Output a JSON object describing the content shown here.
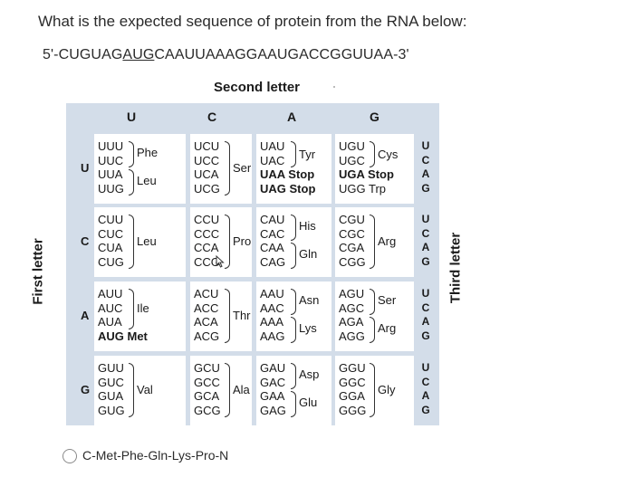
{
  "question": "What is the expected sequence of protein from the RNA below:",
  "sequence": {
    "prefix": "5'-CUGUAG",
    "underlined": "AUG",
    "suffix": "CAAUUAAAGGAAUGACCGGUUAA-3'"
  },
  "labels": {
    "second_letter": "Second letter",
    "first_letter": "First letter",
    "third_letter": "Third letter"
  },
  "col_headers": [
    "U",
    "C",
    "A",
    "G"
  ],
  "row_headers": [
    "U",
    "C",
    "A",
    "G"
  ],
  "third_letters": [
    "U",
    "C",
    "A",
    "G"
  ],
  "cells": {
    "UU": {
      "codons": [
        "UUU",
        "UUC",
        "UUA",
        "UUG"
      ],
      "aa": [
        "Phe",
        "Leu"
      ]
    },
    "UC": {
      "codons": [
        "UCU",
        "UCC",
        "UCA",
        "UCG"
      ],
      "aa": [
        "Ser"
      ]
    },
    "UA": {
      "codons": [
        "UAU",
        "UAC",
        "UAA Stop",
        "UAG Stop"
      ],
      "aa": [
        "Tyr"
      ]
    },
    "UG": {
      "codons": [
        "UGU",
        "UGC",
        "UGA Stop",
        "UGG Trp"
      ],
      "aa": [
        "Cys"
      ]
    },
    "CU": {
      "codons": [
        "CUU",
        "CUC",
        "CUA",
        "CUG"
      ],
      "aa": [
        "Leu"
      ]
    },
    "CC": {
      "codons": [
        "CCU",
        "CCC",
        "CCA",
        "CCG"
      ],
      "aa": [
        "Pro"
      ]
    },
    "CA": {
      "codons": [
        "CAU",
        "CAC",
        "CAA",
        "CAG"
      ],
      "aa": [
        "His",
        "Gln"
      ]
    },
    "CG": {
      "codons": [
        "CGU",
        "CGC",
        "CGA",
        "CGG"
      ],
      "aa": [
        "Arg"
      ]
    },
    "AU": {
      "codons": [
        "AUU",
        "AUC",
        "AUA",
        "AUG Met"
      ],
      "aa": [
        "Ile"
      ]
    },
    "AC": {
      "codons": [
        "ACU",
        "ACC",
        "ACA",
        "ACG"
      ],
      "aa": [
        "Thr"
      ]
    },
    "AA": {
      "codons": [
        "AAU",
        "AAC",
        "AAA",
        "AAG"
      ],
      "aa": [
        "Asn",
        "Lys"
      ]
    },
    "AG": {
      "codons": [
        "AGU",
        "AGC",
        "AGA",
        "AGG"
      ],
      "aa": [
        "Ser",
        "Arg"
      ]
    },
    "GU": {
      "codons": [
        "GUU",
        "GUC",
        "GUA",
        "GUG"
      ],
      "aa": [
        "Val"
      ]
    },
    "GC": {
      "codons": [
        "GCU",
        "GCC",
        "GCA",
        "GCG"
      ],
      "aa": [
        "Ala"
      ]
    },
    "GA": {
      "codons": [
        "GAU",
        "GAC",
        "GAA",
        "GAG"
      ],
      "aa": [
        "Asp",
        "Glu"
      ]
    },
    "GG": {
      "codons": [
        "GGU",
        "GGC",
        "GGA",
        "GGG"
      ],
      "aa": [
        "Gly"
      ]
    }
  },
  "option": "C-Met-Phe-Gln-Lys-Pro-N"
}
